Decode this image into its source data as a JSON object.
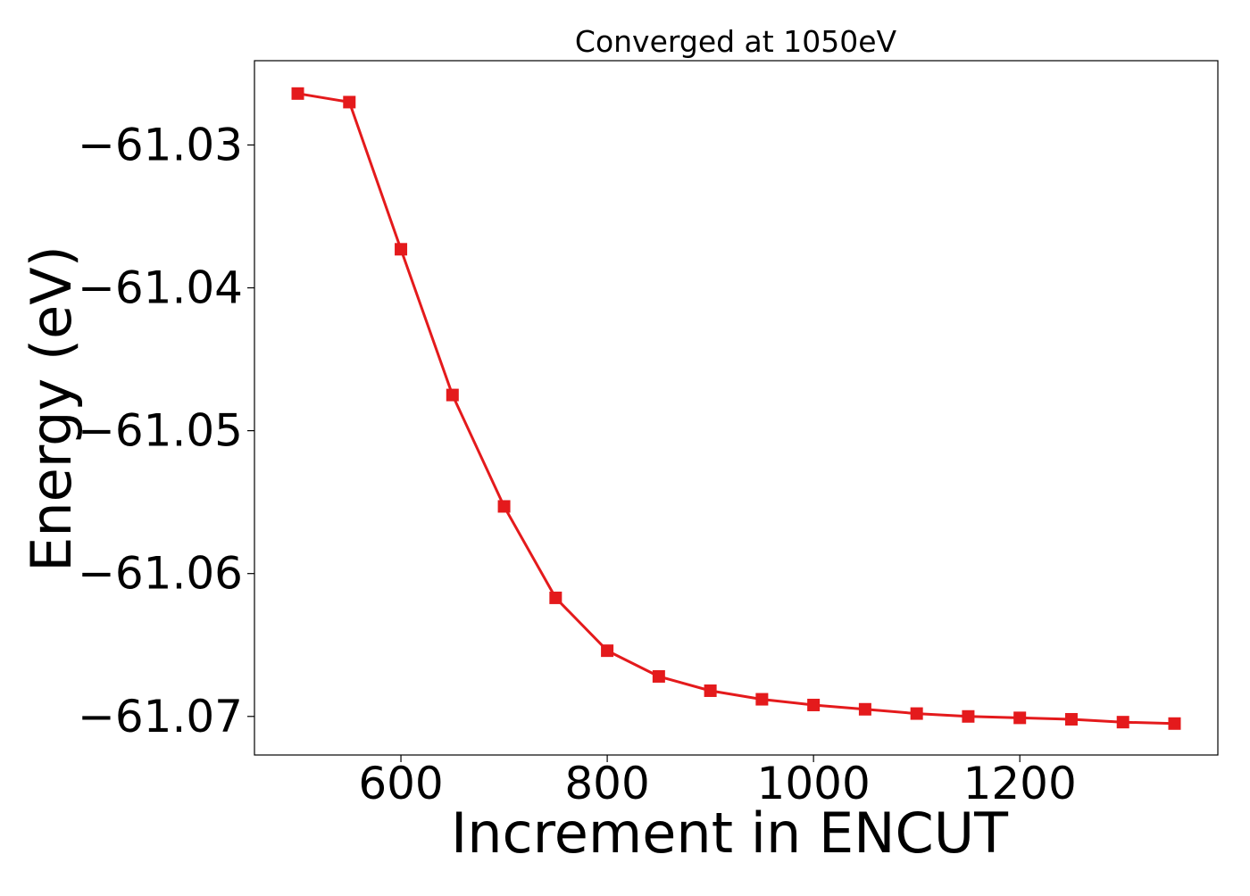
{
  "chart_data": {
    "type": "line",
    "title": "Converged at 1050eV",
    "xlabel": "Increment in ENCUT",
    "ylabel": "Energy (eV)",
    "xlim": [
      458,
      1392
    ],
    "ylim": [
      -61.0727,
      -61.0241
    ],
    "xticks": [
      600,
      800,
      1000,
      1200
    ],
    "xtick_labels": [
      "600",
      "800",
      "1000",
      "1200"
    ],
    "yticks": [
      -61.03,
      -61.04,
      -61.05,
      -61.06,
      -61.07
    ],
    "ytick_labels": [
      "−61.03",
      "−61.04",
      "−61.05",
      "−61.06",
      "−61.07"
    ],
    "grid": false,
    "legend": "none",
    "series": [
      {
        "color": "#e41a1c",
        "marker": "square",
        "x": [
          500,
          550,
          600,
          650,
          700,
          750,
          800,
          850,
          900,
          950,
          1000,
          1050,
          1100,
          1150,
          1200,
          1250,
          1300,
          1350
        ],
        "y": [
          -61.0264,
          -61.027,
          -61.0373,
          -61.0475,
          -61.0553,
          -61.0617,
          -61.0654,
          -61.0672,
          -61.0682,
          -61.0688,
          -61.0692,
          -61.0695,
          -61.0698,
          -61.07,
          -61.0701,
          -61.0702,
          -61.0704,
          -61.0705
        ]
      }
    ]
  }
}
